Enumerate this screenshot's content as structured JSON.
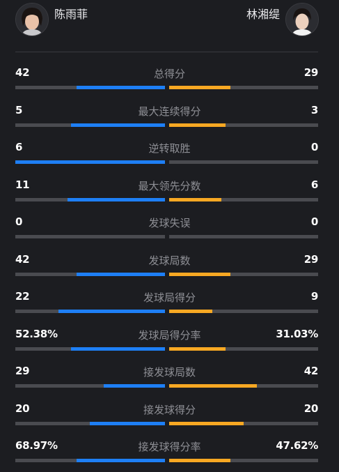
{
  "players": {
    "left": "陈雨菲",
    "right": "林湘缇"
  },
  "colors": {
    "left": "#1e7ff5",
    "right": "#f7a823",
    "track": "#4a4b50"
  },
  "stats": [
    {
      "label": "总得分",
      "left": "42",
      "right": "29",
      "left_share": 0.59,
      "right_share": 0.41
    },
    {
      "label": "最大连续得分",
      "left": "5",
      "right": "3",
      "left_share": 0.63,
      "right_share": 0.38
    },
    {
      "label": "逆转取胜",
      "left": "6",
      "right": "0",
      "left_share": 1.0,
      "right_share": 0.0
    },
    {
      "label": "最大领先分数",
      "left": "11",
      "right": "6",
      "left_share": 0.65,
      "right_share": 0.35
    },
    {
      "label": "发球失误",
      "left": "0",
      "right": "0",
      "left_share": 0.0,
      "right_share": 0.0
    },
    {
      "label": "发球局数",
      "left": "42",
      "right": "29",
      "left_share": 0.59,
      "right_share": 0.41
    },
    {
      "label": "发球局得分",
      "left": "22",
      "right": "9",
      "left_share": 0.71,
      "right_share": 0.29
    },
    {
      "label": "发球局得分率",
      "left": "52.38%",
      "right": "31.03%",
      "left_share": 0.63,
      "right_share": 0.38
    },
    {
      "label": "接发球局数",
      "left": "29",
      "right": "42",
      "left_share": 0.41,
      "right_share": 0.59
    },
    {
      "label": "接发球得分",
      "left": "20",
      "right": "20",
      "left_share": 0.5,
      "right_share": 0.5
    },
    {
      "label": "接发球得分率",
      "left": "68.97%",
      "right": "47.62%",
      "left_share": 0.59,
      "right_share": 0.41
    }
  ]
}
